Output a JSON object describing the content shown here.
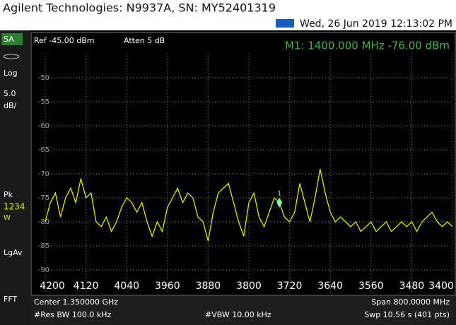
{
  "header": {
    "title": "Agilent Technologies: N9937A, SN: MY52401319",
    "datetime": "Wed, 26 Jun 2019 12:13:02 PM"
  },
  "side_panel": {
    "mode": "SA",
    "scale_type": "Log",
    "scale_value": "5.0",
    "scale_unit": "dB/",
    "detector": "Pk",
    "traces": "1234",
    "trace_state": "W",
    "average": "LgAv",
    "sweep_type": "FFT"
  },
  "settings": {
    "ref_level": "Ref -45.00 dBm",
    "attenuation": "Atten 5 dB",
    "marker_readout": "M1:  1400.000 MHz -76.00 dBm"
  },
  "footer": {
    "center": "Center 1.350000 GHz",
    "span": "Span 800.0000 MHz",
    "res_bw": "#Res BW 100.0 kHz",
    "vbw": "#VBW 10.00 kHz",
    "sweep": "Swp 10.56  s (401 pts)"
  },
  "chart_data": {
    "type": "line",
    "x": [
      4200,
      4190,
      4180,
      4170,
      4160,
      4150,
      4140,
      4130,
      4120,
      4110,
      4100,
      4090,
      4080,
      4070,
      4060,
      4050,
      4040,
      4030,
      4020,
      4010,
      4000,
      3990,
      3980,
      3970,
      3960,
      3950,
      3940,
      3930,
      3920,
      3910,
      3900,
      3890,
      3880,
      3870,
      3860,
      3850,
      3840,
      3830,
      3820,
      3810,
      3800,
      3790,
      3780,
      3770,
      3760,
      3750,
      3740,
      3730,
      3720,
      3710,
      3700,
      3690,
      3680,
      3670,
      3660,
      3650,
      3640,
      3630,
      3620,
      3610,
      3600,
      3590,
      3580,
      3570,
      3560,
      3550,
      3540,
      3530,
      3520,
      3510,
      3500,
      3490,
      3480,
      3470,
      3460,
      3450,
      3440,
      3430,
      3420,
      3410,
      3400
    ],
    "series": [
      {
        "name": "Trace 1",
        "color": "#e6e600",
        "values": [
          -80,
          -76,
          -74,
          -79,
          -75,
          -73,
          -76,
          -71,
          -75,
          -74,
          -80,
          -81,
          -79,
          -82,
          -80,
          -77,
          -75,
          -76,
          -78,
          -76,
          -80,
          -83,
          -80,
          -82,
          -77,
          -75,
          -73,
          -76,
          -74,
          -75,
          -79,
          -80,
          -84,
          -78,
          -74,
          -73,
          -72,
          -76,
          -80,
          -83,
          -76,
          -74,
          -79,
          -81,
          -78,
          -75,
          -76,
          -79,
          -80,
          -78,
          -72,
          -76,
          -80,
          -75,
          -69,
          -74,
          -78,
          -80,
          -79,
          -80,
          -81,
          -80,
          -82,
          -81,
          -80,
          -82,
          -81,
          -80,
          -82,
          -81,
          -80,
          -81,
          -80,
          -82,
          -80,
          -79,
          -78,
          -80,
          -81,
          -80,
          -81
        ]
      }
    ],
    "marker": {
      "label": "1",
      "x": 3740,
      "y": -76
    },
    "xlim": [
      4200,
      3400
    ],
    "xticks": [
      4200,
      4120,
      4040,
      3960,
      3880,
      3800,
      3720,
      3640,
      3560,
      3480,
      3400
    ],
    "ylim": [
      -45,
      -95
    ],
    "yticks": [
      -50,
      -55,
      -60,
      -65,
      -70,
      -75,
      -80,
      -85,
      -90
    ],
    "grid": true
  }
}
